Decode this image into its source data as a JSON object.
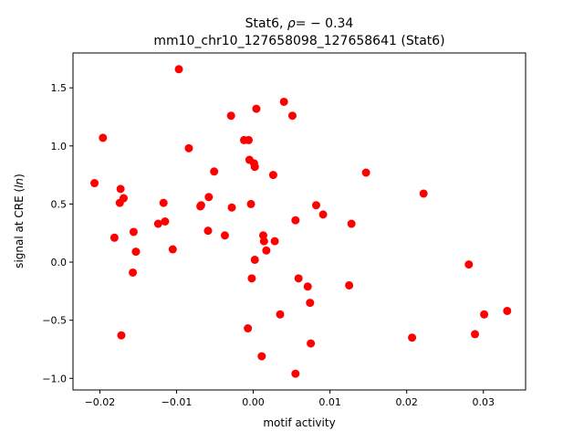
{
  "chart_data": {
    "type": "scatter",
    "title_line1_prefix": "Stat6, ",
    "title_line1_rho": "ρ",
    "title_line1_suffix": "= − 0.34",
    "title_line2": "mm10_chr10_127658098_127658641 (Stat6)",
    "xlabel": "motif activity",
    "ylabel_prefix": "signal at CRE (",
    "ylabel_italic": "ln",
    "ylabel_suffix": ")",
    "xlim": [
      -0.0235,
      0.0355
    ],
    "ylim": [
      -1.1,
      1.8
    ],
    "x_ticks": [
      -0.02,
      -0.01,
      0.0,
      0.01,
      0.02,
      0.03
    ],
    "x_tick_labels": [
      "−0.02",
      "−0.01",
      "0.00",
      "0.01",
      "0.02",
      "0.03"
    ],
    "y_ticks": [
      -1.0,
      -0.5,
      0.0,
      0.5,
      1.0,
      1.5
    ],
    "y_tick_labels": [
      "−1.0",
      "−0.5",
      "0.0",
      "0.5",
      "1.0",
      "1.5"
    ],
    "grid": false,
    "marker_color": "#ff0000",
    "points": [
      {
        "x": -0.0207,
        "y": 0.68
      },
      {
        "x": -0.0196,
        "y": 1.07
      },
      {
        "x": -0.0181,
        "y": 0.21
      },
      {
        "x": -0.0174,
        "y": 0.51
      },
      {
        "x": -0.0173,
        "y": 0.63
      },
      {
        "x": -0.0172,
        "y": -0.63
      },
      {
        "x": -0.0169,
        "y": 0.55
      },
      {
        "x": -0.0157,
        "y": -0.09
      },
      {
        "x": -0.0156,
        "y": 0.26
      },
      {
        "x": -0.0153,
        "y": 0.09
      },
      {
        "x": -0.0124,
        "y": 0.33
      },
      {
        "x": -0.0117,
        "y": 0.51
      },
      {
        "x": -0.0115,
        "y": 0.35
      },
      {
        "x": -0.0105,
        "y": 0.11
      },
      {
        "x": -0.0097,
        "y": 1.66
      },
      {
        "x": -0.0084,
        "y": 0.98
      },
      {
        "x": -0.0069,
        "y": 0.48
      },
      {
        "x": -0.0068,
        "y": 0.49
      },
      {
        "x": -0.0059,
        "y": 0.27
      },
      {
        "x": -0.0058,
        "y": 0.56
      },
      {
        "x": -0.0051,
        "y": 0.78
      },
      {
        "x": -0.0037,
        "y": 0.23
      },
      {
        "x": -0.0029,
        "y": 1.26
      },
      {
        "x": -0.0028,
        "y": 0.47
      },
      {
        "x": -0.0012,
        "y": 1.05
      },
      {
        "x": -0.0007,
        "y": -0.57
      },
      {
        "x": -0.0006,
        "y": 1.05
      },
      {
        "x": -0.0005,
        "y": 0.88
      },
      {
        "x": -0.0003,
        "y": 0.5
      },
      {
        "x": -0.0002,
        "y": -0.14
      },
      {
        "x": 0.0001,
        "y": 0.85
      },
      {
        "x": 0.0002,
        "y": 0.82
      },
      {
        "x": 0.0002,
        "y": 0.02
      },
      {
        "x": 0.0004,
        "y": 1.32
      },
      {
        "x": 0.0011,
        "y": -0.81
      },
      {
        "x": 0.0013,
        "y": 0.23
      },
      {
        "x": 0.0014,
        "y": 0.18
      },
      {
        "x": 0.0017,
        "y": 0.1
      },
      {
        "x": 0.0026,
        "y": 0.75
      },
      {
        "x": 0.0028,
        "y": 0.18
      },
      {
        "x": 0.0035,
        "y": -0.45
      },
      {
        "x": 0.004,
        "y": 1.38
      },
      {
        "x": 0.0051,
        "y": 1.26
      },
      {
        "x": 0.0055,
        "y": 0.36
      },
      {
        "x": 0.0055,
        "y": -0.96
      },
      {
        "x": 0.0059,
        "y": -0.14
      },
      {
        "x": 0.0071,
        "y": -0.21
      },
      {
        "x": 0.0074,
        "y": -0.35
      },
      {
        "x": 0.0075,
        "y": -0.7
      },
      {
        "x": 0.0082,
        "y": 0.49
      },
      {
        "x": 0.0091,
        "y": 0.41
      },
      {
        "x": 0.0125,
        "y": -0.2
      },
      {
        "x": 0.0128,
        "y": 0.33
      },
      {
        "x": 0.0147,
        "y": 0.77
      },
      {
        "x": 0.0207,
        "y": -0.65
      },
      {
        "x": 0.0222,
        "y": 0.59
      },
      {
        "x": 0.0281,
        "y": -0.02
      },
      {
        "x": 0.0289,
        "y": -0.62
      },
      {
        "x": 0.0301,
        "y": -0.45
      },
      {
        "x": 0.0331,
        "y": -0.42
      }
    ]
  }
}
